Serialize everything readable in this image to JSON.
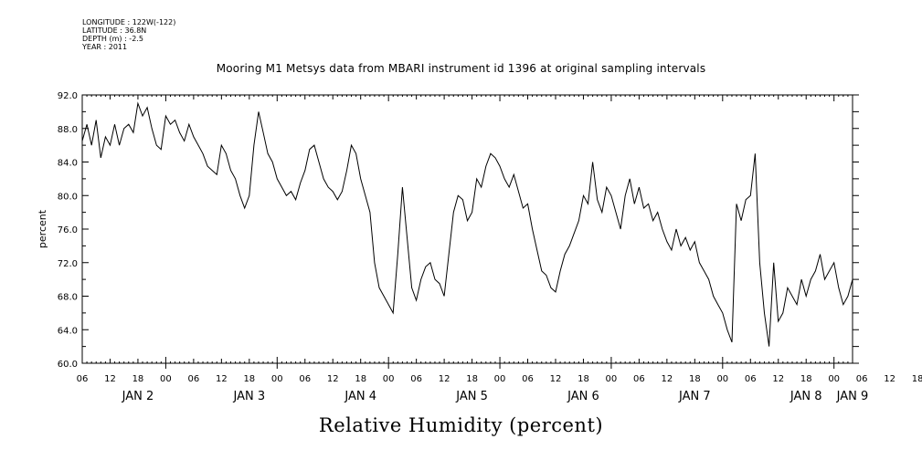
{
  "metadata": {
    "longitude": "LONGITUDE : 122W(-122)",
    "latitude": "LATITUDE : 36.8N",
    "depth": "DEPTH (m) : -2.5",
    "year": "YEAR : 2011"
  },
  "chart_data": {
    "type": "line",
    "title": "Mooring M1 Metsys data from MBARI instrument id 1396 at original sampling intervals",
    "footer_title": "Relative Humidity (percent)",
    "ylabel": "percent",
    "ylim": [
      60,
      92
    ],
    "yticks": [
      60,
      64,
      68,
      72,
      76,
      80,
      84,
      88,
      92
    ],
    "xlim": [
      0,
      166
    ],
    "hour_ticks": [
      "06",
      "12",
      "18",
      "00",
      "06",
      "12",
      "18",
      "00",
      "06",
      "12",
      "18",
      "00",
      "06",
      "12",
      "18",
      "00",
      "06",
      "12",
      "18",
      "00",
      "06",
      "12",
      "18",
      "00",
      "06",
      "12",
      "18",
      "00",
      "06",
      "12",
      "18",
      "00",
      "06"
    ],
    "day_labels": [
      {
        "label": "JAN  2",
        "x": 12
      },
      {
        "label": "JAN  3",
        "x": 36
      },
      {
        "label": "JAN  4",
        "x": 60
      },
      {
        "label": "JAN  5",
        "x": 84
      },
      {
        "label": "JAN  6",
        "x": 108
      },
      {
        "label": "JAN  7",
        "x": 132
      },
      {
        "label": "JAN  8",
        "x": 156
      },
      {
        "label": "JAN  9",
        "x": 166
      }
    ],
    "x_units": "hours since Jan 2 06:00",
    "series": [
      {
        "values": [
          [
            0,
            86.5
          ],
          [
            1,
            88.5
          ],
          [
            2,
            86
          ],
          [
            3,
            89
          ],
          [
            4,
            84.5
          ],
          [
            5,
            87
          ],
          [
            6,
            86
          ],
          [
            7,
            88.5
          ],
          [
            8,
            86
          ],
          [
            9,
            88
          ],
          [
            10,
            88.5
          ],
          [
            11,
            87.5
          ],
          [
            12,
            91
          ],
          [
            13,
            89.5
          ],
          [
            14,
            90.5
          ],
          [
            15,
            88
          ],
          [
            16,
            86
          ],
          [
            17,
            85.5
          ],
          [
            18,
            89.5
          ],
          [
            19,
            88.5
          ],
          [
            20,
            89
          ],
          [
            21,
            87.5
          ],
          [
            22,
            86.5
          ],
          [
            23,
            88.5
          ],
          [
            24,
            87
          ],
          [
            25,
            86
          ],
          [
            26,
            85
          ],
          [
            27,
            83.5
          ],
          [
            28,
            83
          ],
          [
            29,
            82.5
          ],
          [
            30,
            86
          ],
          [
            31,
            85
          ],
          [
            32,
            83
          ],
          [
            33,
            82
          ],
          [
            34,
            80
          ],
          [
            35,
            78.5
          ],
          [
            36,
            80
          ],
          [
            37,
            86
          ],
          [
            38,
            90
          ],
          [
            39,
            87.5
          ],
          [
            40,
            85
          ],
          [
            41,
            84
          ],
          [
            42,
            82
          ],
          [
            43,
            81
          ],
          [
            44,
            80
          ],
          [
            45,
            80.5
          ],
          [
            46,
            79.5
          ],
          [
            47,
            81.5
          ],
          [
            48,
            83
          ],
          [
            49,
            85.5
          ],
          [
            50,
            86
          ],
          [
            51,
            84
          ],
          [
            52,
            82
          ],
          [
            53,
            81
          ],
          [
            54,
            80.5
          ],
          [
            55,
            79.5
          ],
          [
            56,
            80.5
          ],
          [
            57,
            83
          ],
          [
            58,
            86
          ],
          [
            59,
            85
          ],
          [
            60,
            82
          ],
          [
            61,
            80
          ],
          [
            62,
            78
          ],
          [
            63,
            72
          ],
          [
            64,
            69
          ],
          [
            65,
            68
          ],
          [
            66,
            67
          ],
          [
            67,
            66
          ],
          [
            68,
            73
          ],
          [
            69,
            81
          ],
          [
            70,
            75
          ],
          [
            71,
            69
          ],
          [
            72,
            67.5
          ],
          [
            73,
            70
          ],
          [
            74,
            71.5
          ],
          [
            75,
            72
          ],
          [
            76,
            70
          ],
          [
            77,
            69.5
          ],
          [
            78,
            68
          ],
          [
            79,
            73
          ],
          [
            80,
            78
          ],
          [
            81,
            80
          ],
          [
            82,
            79.5
          ],
          [
            83,
            77
          ],
          [
            84,
            78
          ],
          [
            85,
            82
          ],
          [
            86,
            81
          ],
          [
            87,
            83.5
          ],
          [
            88,
            85
          ],
          [
            89,
            84.5
          ],
          [
            90,
            83.5
          ],
          [
            91,
            82
          ],
          [
            92,
            81
          ],
          [
            93,
            82.5
          ],
          [
            94,
            80.5
          ],
          [
            95,
            78.5
          ],
          [
            96,
            79
          ],
          [
            97,
            76
          ],
          [
            98,
            73.5
          ],
          [
            99,
            71
          ],
          [
            100,
            70.5
          ],
          [
            101,
            69
          ],
          [
            102,
            68.5
          ],
          [
            103,
            71
          ],
          [
            104,
            73
          ],
          [
            105,
            74
          ],
          [
            106,
            75.5
          ],
          [
            107,
            77
          ],
          [
            108,
            80
          ],
          [
            109,
            79
          ],
          [
            110,
            84
          ],
          [
            111,
            79.5
          ],
          [
            112,
            78
          ],
          [
            113,
            81
          ],
          [
            114,
            80
          ],
          [
            115,
            78
          ],
          [
            116,
            76
          ],
          [
            117,
            80
          ],
          [
            118,
            82
          ],
          [
            119,
            79
          ],
          [
            120,
            81
          ],
          [
            121,
            78.5
          ],
          [
            122,
            79
          ],
          [
            123,
            77
          ],
          [
            124,
            78
          ],
          [
            125,
            76
          ],
          [
            126,
            74.5
          ],
          [
            127,
            73.5
          ],
          [
            128,
            76
          ],
          [
            129,
            74
          ],
          [
            130,
            75
          ],
          [
            131,
            73.5
          ],
          [
            132,
            74.5
          ],
          [
            133,
            72
          ],
          [
            134,
            71
          ],
          [
            135,
            70
          ],
          [
            136,
            68
          ],
          [
            137,
            67
          ],
          [
            138,
            66
          ],
          [
            139,
            64
          ],
          [
            140,
            62.5
          ],
          [
            141,
            79
          ],
          [
            142,
            77
          ],
          [
            143,
            79.5
          ],
          [
            144,
            80
          ],
          [
            145,
            85
          ],
          [
            146,
            72
          ],
          [
            147,
            66
          ],
          [
            148,
            62
          ],
          [
            149,
            72
          ],
          [
            150,
            65
          ],
          [
            151,
            66
          ],
          [
            152,
            69
          ],
          [
            153,
            68
          ],
          [
            154,
            67
          ],
          [
            155,
            70
          ],
          [
            156,
            68
          ],
          [
            157,
            70
          ],
          [
            158,
            71
          ],
          [
            159,
            73
          ],
          [
            160,
            70
          ],
          [
            161,
            71
          ],
          [
            162,
            72
          ],
          [
            163,
            69
          ],
          [
            164,
            67
          ],
          [
            165,
            68
          ],
          [
            166,
            70
          ]
        ]
      }
    ]
  }
}
